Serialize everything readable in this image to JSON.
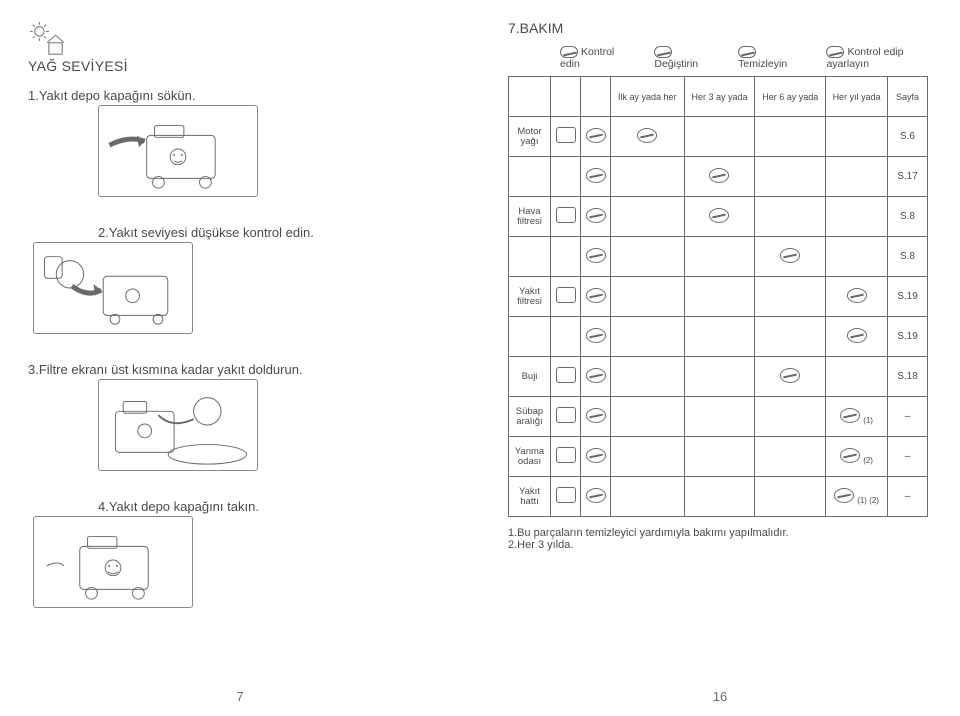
{
  "section_title": "7.BAKIM",
  "left": {
    "heading": "YAĞ SEVİYESİ",
    "steps": [
      "1.Yakıt depo kapağını sökün.",
      "2.Yakıt seviyesi düşükse kontrol edin.",
      "3.Filtre ekranı üst kısmına kadar yakıt doldurun.",
      "4.Yakıt depo kapağını takın."
    ],
    "page_number": "7"
  },
  "right": {
    "legend": {
      "check": "Kontrol edin",
      "replace": "Değiştirin",
      "clean": "Temizleyin",
      "adjust": "Kontrol edip ayarlayın"
    },
    "columns": {
      "c1": "İlk ay yada her",
      "c2": "Her 3 ay yada",
      "c3": "Her 6 ay yada",
      "c4": "Her yıl yada",
      "page_col": "Sayfa"
    },
    "rows": [
      {
        "label": "Motor yağı",
        "page": "S.6"
      },
      {
        "label": "",
        "page": "S.17"
      },
      {
        "label": "Hava filtresi",
        "page": "S.8"
      },
      {
        "label": "",
        "page": "S.8"
      },
      {
        "label": "Yakıt filtresi",
        "page": "S.19"
      },
      {
        "label": "",
        "page": "S.19"
      },
      {
        "label": "Buji",
        "page": "S.18"
      },
      {
        "label": "Sübap aralığı",
        "page": "–",
        "note": "(1)"
      },
      {
        "label": "Yanma odası",
        "page": "–",
        "note": "(2)"
      },
      {
        "label": "Yakıt hattı",
        "page": "–",
        "note": "(1) (2)"
      }
    ],
    "footnotes": [
      "1.Bu parçaların temizleyici yardımıyla bakımı yapılmalıdır.",
      "2.Her 3 yılda."
    ],
    "page_number": "16"
  },
  "colors": {
    "text": "#4a4a4a",
    "border": "#6a6a6a",
    "bg": "#ffffff"
  }
}
